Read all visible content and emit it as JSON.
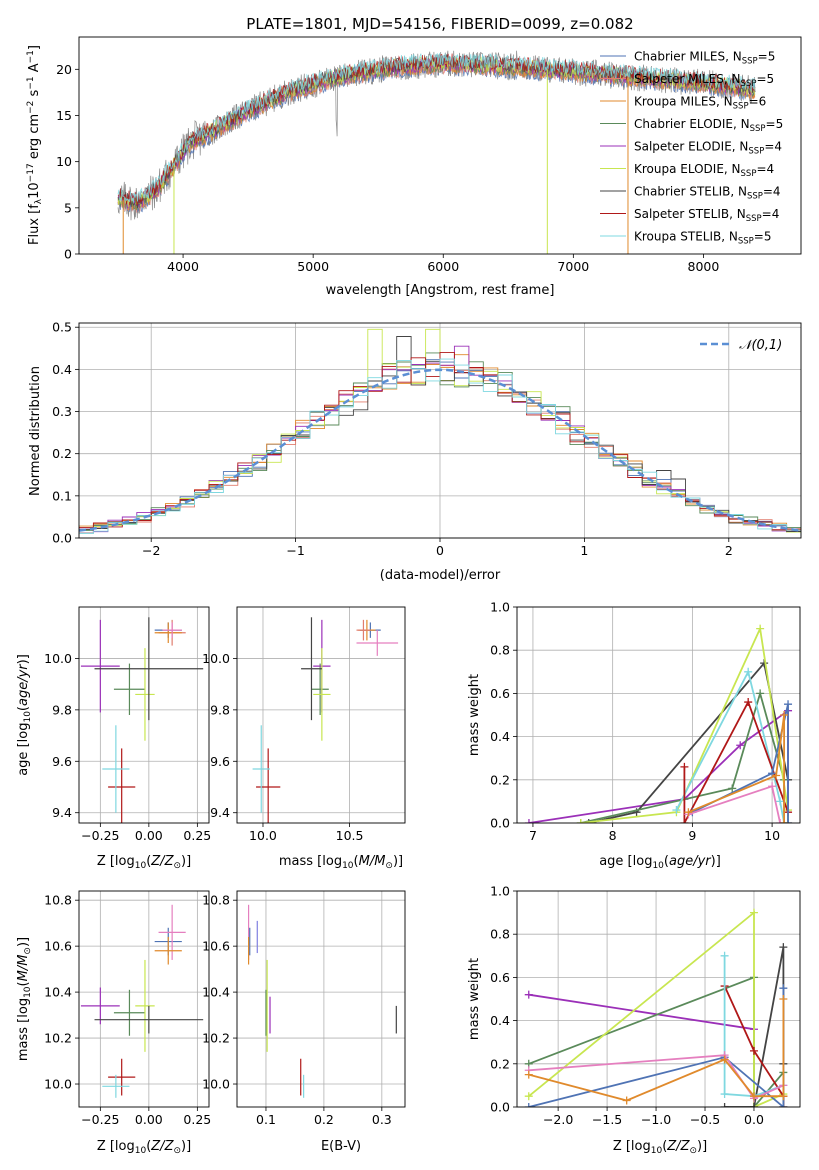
{
  "chart_data": [
    {
      "type": "line",
      "title": "PLATE=1801, MJD=54156, FIBERID=0099, z=0.082",
      "xlabel": "wavelength [Angstrom, rest frame]",
      "ylabel": "Flux [fλ10⁻¹⁷ erg cm⁻² s⁻¹ A⁻¹]",
      "xlim": [
        3200,
        8750
      ],
      "ylim": [
        0,
        23.5
      ],
      "xticks": [
        4000,
        5000,
        6000,
        7000,
        8000
      ],
      "yticks": [
        0,
        5,
        10,
        15,
        20
      ],
      "legend_position": "top-right",
      "data_range": [
        3500,
        8400
      ],
      "continuum_knots": {
        "x": [
          3500,
          3650,
          3800,
          3950,
          4050,
          4250,
          4500,
          4800,
          5200,
          5600,
          6000,
          6400,
          6800,
          7200,
          7600,
          8000,
          8400
        ],
        "y": [
          6,
          5.5,
          7,
          10,
          12,
          13.5,
          15.5,
          17.5,
          19.2,
          20.2,
          20.6,
          20.4,
          20,
          19.5,
          19,
          18.5,
          17.8
        ]
      },
      "series": [
        {
          "name": "Chabrier MILES, N_SSP=5",
          "label_main": "Chabrier MILES, N",
          "label_sub": "SSP",
          "label_tail": "=5",
          "color": "#4f73b4"
        },
        {
          "name": "Salpeter MILES, N_SSP=5",
          "label_main": "Salpeter MILES, N",
          "label_sub": "SSP",
          "label_tail": "=5",
          "color": "#e07d6e"
        },
        {
          "name": "Kroupa MILES, N_SSP=6",
          "label_main": "Kroupa MILES, N",
          "label_sub": "SSP",
          "label_tail": "=6",
          "color": "#e08a2c"
        },
        {
          "name": "Chabrier ELODIE, N_SSP=5",
          "label_main": "Chabrier ELODIE, N",
          "label_sub": "SSP",
          "label_tail": "=5",
          "color": "#5a8a5a"
        },
        {
          "name": "Salpeter ELODIE, N_SSP=4",
          "label_main": "Salpeter ELODIE, N",
          "label_sub": "SSP",
          "label_tail": "=4",
          "color": "#9b30b8"
        },
        {
          "name": "Kroupa ELODIE, N_SSP=4",
          "label_main": "Kroupa ELODIE, N",
          "label_sub": "SSP",
          "label_tail": "=4",
          "color": "#c8e650"
        },
        {
          "name": "Chabrier STELIB, N_SSP=4",
          "label_main": "Chabrier STELIB, N",
          "label_sub": "SSP",
          "label_tail": "=4",
          "color": "#444444"
        },
        {
          "name": "Salpeter STELIB, N_SSP=4",
          "label_main": "Salpeter STELIB, N",
          "label_sub": "SSP",
          "label_tail": "=4",
          "color": "#b01818"
        },
        {
          "name": "Kroupa STELIB, N_SSP=5",
          "label_main": "Kroupa STELIB, N",
          "label_sub": "SSP",
          "label_tail": "=5",
          "color": "#7fd8e0"
        }
      ],
      "data_color": "#888888"
    },
    {
      "type": "histogram",
      "xlabel": "(data-model)/error",
      "ylabel": "Normed distribution",
      "xlim": [
        -2.5,
        2.5
      ],
      "ylim": [
        0,
        0.51
      ],
      "xticks": [
        -2,
        -1,
        0,
        1,
        2
      ],
      "yticks": [
        0.0,
        0.1,
        0.2,
        0.3,
        0.4,
        0.5
      ],
      "grid": true,
      "bin_width": 0.1,
      "legend_position": "top-right",
      "reference": {
        "name": "𝒩(0,1)",
        "color": "#5b8fd4",
        "style": "dashed"
      },
      "series_colors": [
        "#4f73b4",
        "#e07d6e",
        "#e08a2c",
        "#5a8a5a",
        "#9b30b8",
        "#c8e650",
        "#444444",
        "#b01818",
        "#7fd8e0"
      ],
      "peak_bins": {
        "x": [
          -0.45,
          -0.25,
          -0.05,
          0.05,
          0.15
        ],
        "y": [
          0.495,
          0.478,
          0.495,
          0.41,
          0.455
        ]
      },
      "tail_bins": {
        "x": [
          1.55,
          1.65
        ],
        "y": [
          0.16,
          0.14
        ]
      }
    },
    {
      "type": "scatter",
      "xlabel": "Z [log10(Z/Z☉)]",
      "ylabel": "age  [log10(age/yr)]",
      "xlim": [
        -0.36,
        0.31
      ],
      "ylim": [
        9.36,
        10.2
      ],
      "xticks": [
        -0.25,
        0.0,
        0.25
      ],
      "yticks": [
        9.4,
        9.6,
        9.8,
        10.0
      ],
      "grid": true,
      "points": [
        {
          "x": 0.1,
          "y": 10.11,
          "xerr": 0.07,
          "yerr": 0.03,
          "color": "#4f73b4"
        },
        {
          "x": 0.12,
          "y": 10.1,
          "xerr": 0.07,
          "yerr": 0.05,
          "color": "#e07d6e"
        },
        {
          "x": 0.1,
          "y": 10.1,
          "xerr": 0.07,
          "yerr": 0.04,
          "color": "#e08a2c"
        },
        {
          "x": 0.12,
          "y": 10.11,
          "xerr": 0.05,
          "yerr": 0.03,
          "color": "#e57fbf"
        },
        {
          "x": -0.1,
          "y": 9.88,
          "xerr": 0.08,
          "yerr": 0.1,
          "color": "#5a8a5a"
        },
        {
          "x": -0.25,
          "y": 9.97,
          "xerr": 0.1,
          "yerr": 0.18,
          "color": "#9b30b8"
        },
        {
          "x": -0.02,
          "y": 9.86,
          "xerr": 0.05,
          "yerr": 0.18,
          "color": "#c8e650"
        },
        {
          "x": 0.0,
          "y": 9.96,
          "xerr": 0.28,
          "yerr": 0.2,
          "color": "#444444"
        },
        {
          "x": -0.14,
          "y": 9.5,
          "xerr": 0.07,
          "yerr": 0.15,
          "color": "#b01818"
        },
        {
          "x": -0.17,
          "y": 9.57,
          "xerr": 0.07,
          "yerr": 0.17,
          "color": "#7fd8e0"
        }
      ]
    },
    {
      "type": "scatter",
      "xlabel": "mass [log10(M/M☉)]",
      "ylabel": "",
      "xlim": [
        9.85,
        10.82
      ],
      "ylim": [
        9.36,
        10.2
      ],
      "xticks": [
        10.0,
        10.5
      ],
      "yticks": [
        9.4,
        9.6,
        9.8,
        10.0
      ],
      "grid": true,
      "points": [
        {
          "x": 10.62,
          "y": 10.11,
          "xerr": 0.06,
          "yerr": 0.03,
          "color": "#4f73b4"
        },
        {
          "x": 10.66,
          "y": 10.06,
          "xerr": 0.12,
          "yerr": 0.05,
          "color": "#e57fbf"
        },
        {
          "x": 10.6,
          "y": 10.11,
          "xerr": 0.05,
          "yerr": 0.04,
          "color": "#e08a2c"
        },
        {
          "x": 10.58,
          "y": 10.11,
          "xerr": 0.04,
          "yerr": 0.04,
          "color": "#e07d6e"
        },
        {
          "x": 10.33,
          "y": 9.88,
          "xerr": 0.05,
          "yerr": 0.1,
          "color": "#5a8a5a"
        },
        {
          "x": 10.34,
          "y": 9.97,
          "xerr": 0.05,
          "yerr": 0.18,
          "color": "#9b30b8"
        },
        {
          "x": 10.34,
          "y": 9.86,
          "xerr": 0.05,
          "yerr": 0.18,
          "color": "#c8e650"
        },
        {
          "x": 10.28,
          "y": 9.96,
          "xerr": 0.06,
          "yerr": 0.2,
          "color": "#444444"
        },
        {
          "x": 10.03,
          "y": 9.5,
          "xerr": 0.07,
          "yerr": 0.15,
          "color": "#b01818"
        },
        {
          "x": 9.99,
          "y": 9.57,
          "xerr": 0.05,
          "yerr": 0.17,
          "color": "#7fd8e0"
        }
      ]
    },
    {
      "type": "line",
      "xlabel": "age  [log10(age/yr)]",
      "ylabel": "mass weight",
      "xlim": [
        6.8,
        10.35
      ],
      "ylim": [
        0,
        1
      ],
      "xticks": [
        7,
        8,
        9,
        10
      ],
      "yticks": [
        0.0,
        0.2,
        0.4,
        0.6,
        0.8,
        1.0
      ],
      "grid": true,
      "series": [
        {
          "color": "#9b30b8",
          "x": [
            6.95,
            8.9,
            9.6,
            10.2,
            10.2
          ],
          "y": [
            0.0,
            0.11,
            0.36,
            0.52,
            0.0
          ]
        },
        {
          "color": "#444444",
          "x": [
            7.7,
            8.3,
            9.9,
            10.2
          ],
          "y": [
            0.0,
            0.05,
            0.74,
            0.2
          ]
        },
        {
          "color": "#5a8a5a",
          "x": [
            7.6,
            9.5,
            9.85,
            10.15,
            10.15
          ],
          "y": [
            0.0,
            0.16,
            0.6,
            0.2,
            0.0
          ]
        },
        {
          "color": "#c8e650",
          "x": [
            7.6,
            8.8,
            9.85,
            10.2,
            10.2
          ],
          "y": [
            0.0,
            0.05,
            0.9,
            0.06,
            0.0
          ]
        },
        {
          "color": "#7fd8e0",
          "x": [
            8.8,
            9.7,
            10.1,
            10.15
          ],
          "y": [
            0.06,
            0.7,
            0.1,
            0.0
          ]
        },
        {
          "color": "#b01818",
          "x": [
            8.9,
            8.9,
            9.7,
            10.2
          ],
          "y": [
            0.26,
            0.0,
            0.56,
            0.05
          ]
        },
        {
          "color": "#4f73b4",
          "x": [
            9.0,
            10.0,
            10.2,
            10.2
          ],
          "y": [
            0.05,
            0.23,
            0.55,
            0.0
          ]
        },
        {
          "color": "#e57fbf",
          "x": [
            8.95,
            10.0,
            10.1
          ],
          "y": [
            0.04,
            0.17,
            0.0
          ]
        },
        {
          "color": "#e08a2c",
          "x": [
            8.95,
            10.05,
            10.15,
            10.15
          ],
          "y": [
            0.05,
            0.22,
            0.5,
            0.0
          ]
        }
      ]
    },
    {
      "type": "scatter",
      "xlabel": "Z [log10(Z/Z☉)]",
      "ylabel": "mass [log10(M/M☉)]",
      "xlim": [
        -0.36,
        0.31
      ],
      "ylim": [
        9.9,
        10.84
      ],
      "xticks": [
        -0.25,
        0.0,
        0.25
      ],
      "yticks": [
        10.0,
        10.2,
        10.4,
        10.6,
        10.8
      ],
      "grid": true,
      "points": [
        {
          "x": 0.1,
          "y": 10.62,
          "xerr": 0.07,
          "yerr": 0.06,
          "color": "#4f73b4"
        },
        {
          "x": 0.12,
          "y": 10.66,
          "xerr": 0.07,
          "yerr": 0.12,
          "color": "#e57fbf"
        },
        {
          "x": 0.1,
          "y": 10.58,
          "xerr": 0.07,
          "yerr": 0.06,
          "color": "#e08a2c"
        },
        {
          "x": -0.1,
          "y": 10.31,
          "xerr": 0.08,
          "yerr": 0.1,
          "color": "#5a8a5a"
        },
        {
          "x": -0.25,
          "y": 10.34,
          "xerr": 0.1,
          "yerr": 0.08,
          "color": "#9b30b8"
        },
        {
          "x": -0.02,
          "y": 10.34,
          "xerr": 0.05,
          "yerr": 0.2,
          "color": "#c8e650"
        },
        {
          "x": 0.0,
          "y": 10.28,
          "xerr": 0.28,
          "yerr": 0.06,
          "color": "#444444"
        },
        {
          "x": -0.14,
          "y": 10.03,
          "xerr": 0.07,
          "yerr": 0.08,
          "color": "#b01818"
        },
        {
          "x": -0.17,
          "y": 9.99,
          "xerr": 0.07,
          "yerr": 0.05,
          "color": "#7fd8e0"
        }
      ]
    },
    {
      "type": "scatter",
      "xlabel": "E(B-V)",
      "ylabel": "",
      "xlim": [
        0.05,
        0.34
      ],
      "ylim": [
        9.9,
        10.84
      ],
      "xticks": [
        0.1,
        0.2,
        0.3
      ],
      "yticks": [
        10.0,
        10.2,
        10.4,
        10.6,
        10.8
      ],
      "grid": true,
      "points": [
        {
          "x": 0.07,
          "y": 10.66,
          "xerr": 0.0,
          "yerr": 0.12,
          "color": "#e57fbf"
        },
        {
          "x": 0.072,
          "y": 10.62,
          "xerr": 0.0,
          "yerr": 0.06,
          "color": "#4f73b4"
        },
        {
          "x": 0.07,
          "y": 10.58,
          "xerr": 0.0,
          "yerr": 0.06,
          "color": "#e08a2c"
        },
        {
          "x": 0.085,
          "y": 10.64,
          "xerr": 0.0,
          "yerr": 0.07,
          "color": "#7f7fe0"
        },
        {
          "x": 0.1,
          "y": 10.31,
          "xerr": 0.0,
          "yerr": 0.1,
          "color": "#5a8a5a"
        },
        {
          "x": 0.102,
          "y": 10.34,
          "xerr": 0.0,
          "yerr": 0.2,
          "color": "#c8e650"
        },
        {
          "x": 0.107,
          "y": 10.3,
          "xerr": 0.0,
          "yerr": 0.08,
          "color": "#9b30b8"
        },
        {
          "x": 0.16,
          "y": 10.03,
          "xerr": 0.0,
          "yerr": 0.08,
          "color": "#b01818"
        },
        {
          "x": 0.165,
          "y": 9.99,
          "xerr": 0.0,
          "yerr": 0.05,
          "color": "#7fd8e0"
        },
        {
          "x": 0.325,
          "y": 10.28,
          "xerr": 0.0,
          "yerr": 0.06,
          "color": "#444444"
        }
      ]
    },
    {
      "type": "line",
      "xlabel": "Z [log10(Z/Z☉)]",
      "ylabel": "mass weight",
      "xlim": [
        -2.42,
        0.47
      ],
      "ylim": [
        0,
        1
      ],
      "xticks": [
        -2.0,
        -1.5,
        -1.0,
        -0.5,
        0.0
      ],
      "yticks": [
        0.0,
        0.2,
        0.4,
        0.6,
        0.8,
        1.0
      ],
      "grid": true,
      "series": [
        {
          "color": "#9b30b8",
          "x": [
            -2.3,
            0.0
          ],
          "y": [
            0.52,
            0.36
          ]
        },
        {
          "color": "#5a8a5a",
          "x": [
            -2.3,
            0.0,
            0.0,
            0.3,
            0.3
          ],
          "y": [
            0.2,
            0.6,
            0.0,
            0.16,
            0.0
          ]
        },
        {
          "color": "#c8e650",
          "x": [
            -2.3,
            0.0,
            0.0,
            0.3
          ],
          "y": [
            0.05,
            0.9,
            0.0,
            0.06
          ]
        },
        {
          "color": "#444444",
          "x": [
            -0.3,
            0.0,
            0.3,
            0.3
          ],
          "y": [
            0.0,
            0.0,
            0.74,
            0.2
          ]
        },
        {
          "color": "#b01818",
          "x": [
            -0.3,
            0.0,
            0.3,
            0.3
          ],
          "y": [
            0.56,
            0.26,
            0.05,
            0.0
          ]
        },
        {
          "color": "#7fd8e0",
          "x": [
            -0.3,
            -0.3,
            0.0,
            0.3
          ],
          "y": [
            0.7,
            0.06,
            0.05,
            0.1
          ]
        },
        {
          "color": "#4f73b4",
          "x": [
            -2.3,
            -0.3,
            0.3,
            0.3
          ],
          "y": [
            0.0,
            0.23,
            0.0,
            0.55
          ]
        },
        {
          "color": "#e57fbf",
          "x": [
            -2.3,
            -0.3,
            0.0,
            0.3
          ],
          "y": [
            0.17,
            0.24,
            0.04,
            0.1
          ]
        },
        {
          "color": "#e08a2c",
          "x": [
            -2.3,
            -1.3,
            -0.3,
            0.0,
            0.3,
            0.3
          ],
          "y": [
            0.15,
            0.03,
            0.22,
            0.05,
            0.05,
            0.5
          ]
        }
      ]
    }
  ]
}
